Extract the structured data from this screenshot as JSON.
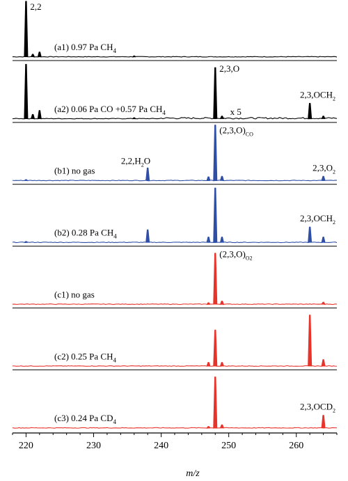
{
  "chart_data": {
    "type": "line",
    "xlabel": "m/z",
    "xlim": [
      218,
      266
    ],
    "x_ticks": [
      "220",
      "230",
      "240",
      "250",
      "260"
    ],
    "colors": {
      "black": "#000000",
      "blue": "#2f4fa6",
      "red": "#e8332a"
    },
    "panels": [
      {
        "id": "a1",
        "label": "(a1) 0.97 Pa CH",
        "label_sub": "4",
        "color": "#000000",
        "peaks": [
          [
            220,
            1.0
          ],
          [
            221,
            0.05
          ],
          [
            222,
            0.09
          ],
          [
            236,
            0.02
          ]
        ],
        "annotations": [
          {
            "text": "2,2",
            "sub": "",
            "x": 220
          }
        ]
      },
      {
        "id": "a2",
        "label": "(a2) 0.06 Pa CO +0.57 Pa CH",
        "label_sub": "4",
        "color": "#000000",
        "peaks": [
          [
            220,
            0.98
          ],
          [
            221,
            0.08
          ],
          [
            222,
            0.15
          ],
          [
            236,
            0.02
          ],
          [
            248,
            0.92
          ],
          [
            249,
            0.05
          ],
          [
            262,
            0.28
          ],
          [
            264,
            0.05
          ]
        ],
        "magnify": {
          "text": "x 5",
          "from": 240
        },
        "annotations": [
          {
            "text": "2,3,O",
            "sub": "",
            "x": 248
          },
          {
            "text": "2,3,OCH",
            "sub": "2",
            "x": 262
          }
        ]
      },
      {
        "id": "b1",
        "label": "(b1) no gas",
        "label_sub": "",
        "color": "#2f4fa6",
        "peaks": [
          [
            220,
            0.02
          ],
          [
            238,
            0.23
          ],
          [
            247,
            0.07
          ],
          [
            248,
            1.0
          ],
          [
            249,
            0.08
          ],
          [
            264,
            0.08
          ]
        ],
        "annotations": [
          {
            "text": "2,2,H",
            "sub": "2",
            "tail": "O",
            "x": 238
          },
          {
            "text": "(2,3,O)",
            "sub": "CO",
            "x": 248
          },
          {
            "text": "2,3,O",
            "sub": "2",
            "x": 264
          }
        ]
      },
      {
        "id": "b2",
        "label": "(b2) 0.28 Pa CH",
        "label_sub": "4",
        "color": "#2f4fa6",
        "peaks": [
          [
            220,
            0.02
          ],
          [
            238,
            0.23
          ],
          [
            247,
            0.1
          ],
          [
            248,
            0.98
          ],
          [
            249,
            0.1
          ],
          [
            262,
            0.28
          ],
          [
            264,
            0.1
          ]
        ],
        "annotations": [
          {
            "text": "2,3,OCH",
            "sub": "2",
            "x": 262
          }
        ]
      },
      {
        "id": "c1",
        "label": "(c1) no gas",
        "label_sub": "",
        "color": "#e8332a",
        "peaks": [
          [
            247,
            0.03
          ],
          [
            248,
            0.92
          ],
          [
            249,
            0.06
          ],
          [
            264,
            0.04
          ]
        ],
        "annotations": [
          {
            "text": "(2,3,O)",
            "sub": "O2",
            "x": 248
          }
        ]
      },
      {
        "id": "c2",
        "label": "(c2) 0.25 Pa CH",
        "label_sub": "4",
        "color": "#e8332a",
        "peaks": [
          [
            247,
            0.07
          ],
          [
            248,
            0.65
          ],
          [
            249,
            0.07
          ],
          [
            262,
            0.92
          ],
          [
            264,
            0.12
          ]
        ],
        "annotations": []
      },
      {
        "id": "c3",
        "label": "(c3) 0.24 Pa CD",
        "label_sub": "4",
        "color": "#e8332a",
        "peaks": [
          [
            247,
            0.03
          ],
          [
            248,
            0.92
          ],
          [
            249,
            0.06
          ],
          [
            264,
            0.23
          ]
        ],
        "annotations": [
          {
            "text": "2,3,OCD",
            "sub": "2",
            "x": 264
          }
        ]
      }
    ]
  }
}
